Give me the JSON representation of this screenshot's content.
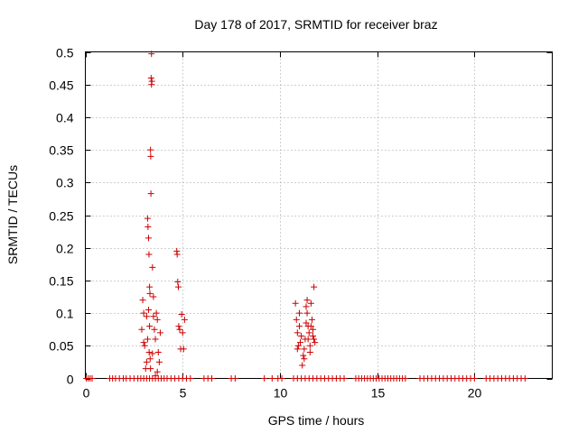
{
  "chart_data": {
    "type": "scatter",
    "title": "Day 178 of 2017, SRMTID for receiver braz",
    "xlabel": "GPS time / hours",
    "ylabel": "SRMTID / TECUs",
    "xlim": [
      0,
      24
    ],
    "ylim": [
      0,
      0.5
    ],
    "xticks": [
      0,
      5,
      10,
      15,
      20
    ],
    "xtick_labels": [
      "0",
      "5",
      "10",
      "15",
      "20"
    ],
    "yticks": [
      0,
      0.05,
      0.1,
      0.15,
      0.2,
      0.25,
      0.3,
      0.35,
      0.4,
      0.45,
      0.5
    ],
    "ytick_labels": [
      "0",
      "0.05",
      "0.1",
      "0.15",
      "0.2",
      "0.25",
      "0.3",
      "0.35",
      "0.4",
      "0.45",
      "0.5"
    ],
    "grid": true,
    "marker": "plus",
    "color": "#cc0000",
    "series": [
      {
        "name": "SRMTID",
        "points": [
          [
            0.05,
            0
          ],
          [
            0.15,
            0
          ],
          [
            0.25,
            0
          ],
          [
            0.35,
            0
          ],
          [
            1.25,
            0
          ],
          [
            1.4,
            0
          ],
          [
            1.55,
            0
          ],
          [
            1.75,
            0
          ],
          [
            1.95,
            0
          ],
          [
            2.1,
            0
          ],
          [
            2.3,
            0
          ],
          [
            2.5,
            0
          ],
          [
            2.7,
            0
          ],
          [
            2.85,
            0
          ],
          [
            3.0,
            0
          ],
          [
            3.15,
            0
          ],
          [
            3.3,
            0
          ],
          [
            3.45,
            0
          ],
          [
            3.6,
            0
          ],
          [
            3.75,
            0
          ],
          [
            3.9,
            0
          ],
          [
            4.05,
            0
          ],
          [
            4.2,
            0
          ],
          [
            4.4,
            0
          ],
          [
            4.6,
            0
          ],
          [
            4.8,
            0
          ],
          [
            5.0,
            0
          ],
          [
            5.2,
            0
          ],
          [
            5.4,
            0
          ],
          [
            6.1,
            0
          ],
          [
            6.3,
            0
          ],
          [
            6.5,
            0
          ],
          [
            7.5,
            0
          ],
          [
            7.7,
            0
          ],
          [
            9.2,
            0
          ],
          [
            9.6,
            0
          ],
          [
            9.9,
            0
          ],
          [
            10.1,
            0
          ],
          [
            10.7,
            0
          ],
          [
            10.9,
            0
          ],
          [
            11.1,
            0
          ],
          [
            11.3,
            0
          ],
          [
            11.5,
            0
          ],
          [
            11.7,
            0
          ],
          [
            11.9,
            0
          ],
          [
            12.1,
            0
          ],
          [
            12.3,
            0
          ],
          [
            12.5,
            0
          ],
          [
            12.7,
            0
          ],
          [
            12.9,
            0
          ],
          [
            13.1,
            0
          ],
          [
            13.3,
            0
          ],
          [
            13.9,
            0
          ],
          [
            14.05,
            0
          ],
          [
            14.2,
            0
          ],
          [
            14.35,
            0
          ],
          [
            14.5,
            0
          ],
          [
            14.65,
            0
          ],
          [
            14.8,
            0
          ],
          [
            14.95,
            0
          ],
          [
            15.1,
            0
          ],
          [
            15.25,
            0
          ],
          [
            15.4,
            0
          ],
          [
            15.55,
            0
          ],
          [
            15.7,
            0
          ],
          [
            15.85,
            0
          ],
          [
            16.0,
            0
          ],
          [
            16.15,
            0
          ],
          [
            16.3,
            0
          ],
          [
            16.45,
            0
          ],
          [
            17.2,
            0
          ],
          [
            17.4,
            0
          ],
          [
            17.6,
            0
          ],
          [
            17.8,
            0
          ],
          [
            18.0,
            0
          ],
          [
            18.2,
            0
          ],
          [
            18.4,
            0
          ],
          [
            18.6,
            0
          ],
          [
            18.8,
            0
          ],
          [
            19.0,
            0
          ],
          [
            19.2,
            0
          ],
          [
            19.4,
            0
          ],
          [
            19.6,
            0
          ],
          [
            19.8,
            0
          ],
          [
            20.0,
            0
          ],
          [
            20.6,
            0
          ],
          [
            20.8,
            0
          ],
          [
            21.0,
            0
          ],
          [
            21.2,
            0
          ],
          [
            21.4,
            0
          ],
          [
            21.6,
            0
          ],
          [
            21.8,
            0
          ],
          [
            22.0,
            0
          ],
          [
            22.2,
            0
          ],
          [
            22.4,
            0
          ],
          [
            22.6,
            0
          ],
          [
            2.9,
            0.075
          ],
          [
            2.95,
            0.12
          ],
          [
            3.0,
            0.1
          ],
          [
            3.05,
            0.05
          ],
          [
            3.1,
            0.015
          ],
          [
            3.15,
            0.025
          ],
          [
            3.2,
            0.245
          ],
          [
            3.22,
            0.232
          ],
          [
            3.25,
            0.215
          ],
          [
            3.27,
            0.19
          ],
          [
            3.3,
            0.14
          ],
          [
            3.32,
            0.13
          ],
          [
            3.35,
            0.35
          ],
          [
            3.36,
            0.34
          ],
          [
            3.37,
            0.283
          ],
          [
            3.38,
            0.46
          ],
          [
            3.4,
            0.45
          ],
          [
            3.42,
            0.455
          ],
          [
            3.4,
            0.497
          ],
          [
            3.45,
            0.17
          ],
          [
            3.5,
            0.125
          ],
          [
            3.25,
            0.105
          ],
          [
            3.3,
            0.08
          ],
          [
            3.2,
            0.06
          ],
          [
            3.28,
            0.04
          ],
          [
            3.33,
            0.03
          ],
          [
            3.35,
            0.015
          ],
          [
            3.15,
            0.095
          ],
          [
            3.5,
            0.095
          ],
          [
            3.55,
            0.075
          ],
          [
            3.6,
            0.06
          ],
          [
            3.65,
            0.1
          ],
          [
            3.7,
            0.09
          ],
          [
            3.75,
            0.04
          ],
          [
            3.8,
            0.025
          ],
          [
            3.7,
            0.01
          ],
          [
            3.85,
            0.07
          ],
          [
            3.0,
            0.055
          ],
          [
            3.45,
            0.038
          ],
          [
            3.6,
            0.004
          ],
          [
            4.7,
            0.195
          ],
          [
            4.72,
            0.19
          ],
          [
            4.75,
            0.148
          ],
          [
            4.78,
            0.14
          ],
          [
            4.8,
            0.08
          ],
          [
            4.85,
            0.075
          ],
          [
            4.9,
            0.045
          ],
          [
            4.95,
            0.098
          ],
          [
            5.0,
            0.07
          ],
          [
            5.05,
            0.045
          ],
          [
            5.1,
            0.09
          ],
          [
            10.8,
            0.115
          ],
          [
            10.85,
            0.09
          ],
          [
            10.9,
            0.07
          ],
          [
            10.95,
            0.05
          ],
          [
            11.0,
            0.1
          ],
          [
            11.05,
            0.055
          ],
          [
            11.1,
            0.065
          ],
          [
            11.2,
            0.035
          ],
          [
            11.25,
            0.045
          ],
          [
            11.3,
            0.06
          ],
          [
            11.35,
            0.11
          ],
          [
            11.4,
            0.12
          ],
          [
            11.45,
            0.08
          ],
          [
            11.5,
            0.07
          ],
          [
            11.55,
            0.05
          ],
          [
            11.6,
            0.115
          ],
          [
            11.65,
            0.09
          ],
          [
            11.7,
            0.065
          ],
          [
            11.75,
            0.14
          ],
          [
            11.8,
            0.055
          ],
          [
            11.15,
            0.02
          ],
          [
            11.25,
            0.03
          ],
          [
            11.35,
            0.085
          ],
          [
            11.45,
            0.06
          ],
          [
            11.55,
            0.04
          ],
          [
            11.7,
            0.075
          ],
          [
            10.9,
            0.045
          ],
          [
            11.0,
            0.08
          ],
          [
            11.4,
            0.1
          ],
          [
            11.6,
            0.08
          ],
          [
            11.75,
            0.06
          ]
        ]
      }
    ]
  }
}
